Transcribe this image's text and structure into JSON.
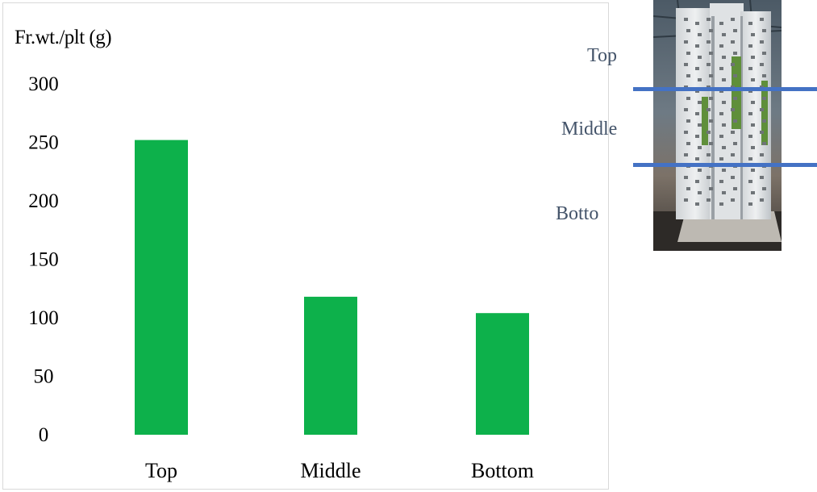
{
  "chart_data": {
    "type": "bar",
    "title": "",
    "ylabel": "Fr.wt./plt (g)",
    "xlabel": "",
    "categories": [
      "Top",
      "Middle",
      "Bottom"
    ],
    "values": [
      252,
      118,
      104
    ],
    "ylim": [
      0,
      300
    ],
    "yticks": [
      0,
      50,
      100,
      150,
      200,
      250,
      300
    ],
    "bar_color": "#0db14b",
    "grid": false,
    "legend": "none"
  },
  "photo_annotation": {
    "labels": {
      "top": "Top",
      "middle": "Middle",
      "bottom": "Botto"
    },
    "divider_color": "#4472c4",
    "label_color": "#44546a"
  }
}
